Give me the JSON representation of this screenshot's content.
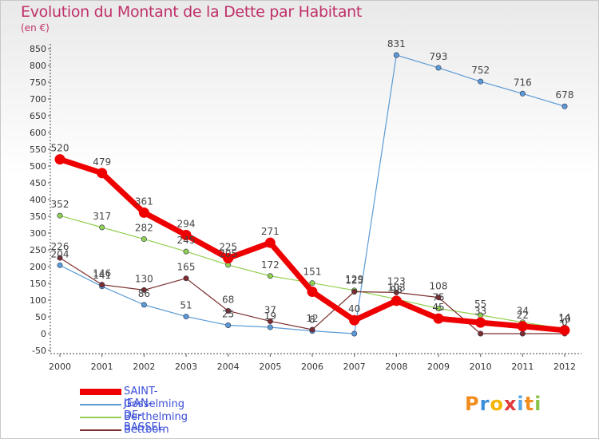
{
  "title": "Evolution du Montant de la Dette par Habitant",
  "subtitle": "(en €)",
  "logo": "Proxiti",
  "colors": {
    "title": "#c0306a",
    "axis_text": "#333333",
    "label_text": "#444444",
    "legend_text": "#3c4fd8"
  },
  "chart_data": {
    "type": "line",
    "x": [
      "2000",
      "2001",
      "2002",
      "2003",
      "2004",
      "2005",
      "2006",
      "2007",
      "2008",
      "2009",
      "2010",
      "2011",
      "2012"
    ],
    "ylim": [
      -50,
      850
    ],
    "yticks": [
      -50,
      0,
      50,
      100,
      150,
      200,
      250,
      300,
      350,
      400,
      450,
      500,
      550,
      600,
      650,
      700,
      750,
      800,
      850
    ],
    "grid": false,
    "legend_position": "bottom-left",
    "series": [
      {
        "name": "Gosselming",
        "color": "#5b9bd5",
        "values": [
          204,
          141,
          86,
          51,
          25,
          19,
          8,
          0,
          831,
          793,
          752,
          716,
          678
        ],
        "labels": [
          "204",
          "141",
          "86",
          "51",
          "25",
          "19",
          "8",
          "",
          "831",
          "793",
          "752",
          "716",
          "678"
        ]
      },
      {
        "name": "Berthelming",
        "color": "#92d050",
        "values": [
          352,
          317,
          282,
          245,
          205,
          172,
          151,
          129,
          103,
          75,
          55,
          34,
          14
        ],
        "labels": [
          "352",
          "317",
          "282",
          "245",
          "205",
          "172",
          "151",
          "129",
          "103",
          "75",
          "55",
          "34",
          "14"
        ]
      },
      {
        "name": "Bettborn",
        "color": "#7b2d2d",
        "values": [
          226,
          146,
          130,
          165,
          68,
          37,
          12,
          125,
          123,
          108,
          0,
          0,
          0
        ],
        "labels": [
          "226",
          "146",
          "130",
          "165",
          "68",
          "37",
          "12",
          "125",
          "123",
          "108",
          "",
          "",
          "0"
        ]
      },
      {
        "name": "SAINT-JEAN-DE-BASSEL",
        "color": "#ee0000",
        "values": [
          520,
          479,
          361,
          294,
          225,
          271,
          125,
          40,
          98,
          45,
          33,
          22,
          10
        ],
        "labels": [
          "520",
          "479",
          "361",
          "294",
          "225",
          "271",
          "",
          "40",
          "98",
          "45",
          "33",
          "22",
          "10"
        ]
      }
    ],
    "legend": [
      "SAINT-JEAN-DE-BASSEL",
      "Gosselming",
      "Berthelming",
      "Bettborn"
    ]
  }
}
